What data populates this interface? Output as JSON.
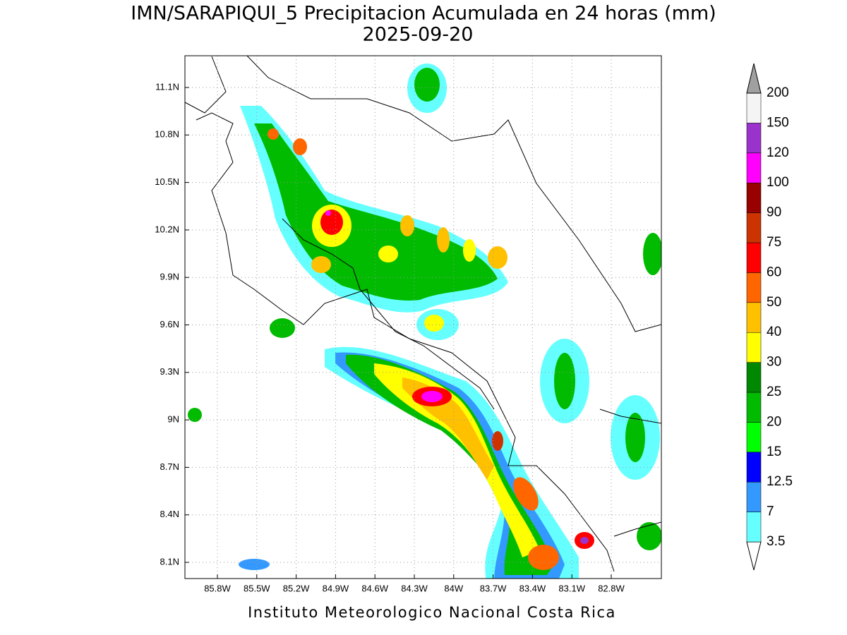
{
  "title": "IMN/SARAPIQUI_5 Precipitacion Acumulada en 24 horas (mm)",
  "subtitle": "2025-09-20",
  "footer": "Instituto Meteorologico Nacional Costa Rica",
  "map": {
    "xticks": [
      "85.8W",
      "85.5W",
      "85.2W",
      "84.9W",
      "84.6W",
      "84.3W",
      "84W",
      "83.7W",
      "83.4W",
      "83.1W",
      "82.8W"
    ],
    "yticks": [
      "11.1N",
      "10.8N",
      "10.5N",
      "10.2N",
      "9.9N",
      "9.6N",
      "9.3N",
      "9N",
      "8.7N",
      "8.4N",
      "8.1N"
    ]
  },
  "colorbar": {
    "levels": [
      "3.5",
      "7",
      "12.5",
      "15",
      "20",
      "25",
      "30",
      "40",
      "50",
      "60",
      "75",
      "90",
      "100",
      "120",
      "150",
      "200"
    ],
    "colors": [
      "#ffffff",
      "#66ffff",
      "#3399ff",
      "#0000ff",
      "#00ff00",
      "#00bb00",
      "#008800",
      "#ffff00",
      "#ffc000",
      "#ff6600",
      "#ff0000",
      "#cc3300",
      "#990000",
      "#ff00ff",
      "#9933cc",
      "#f4f4f4",
      "#a0a0a0"
    ]
  }
}
